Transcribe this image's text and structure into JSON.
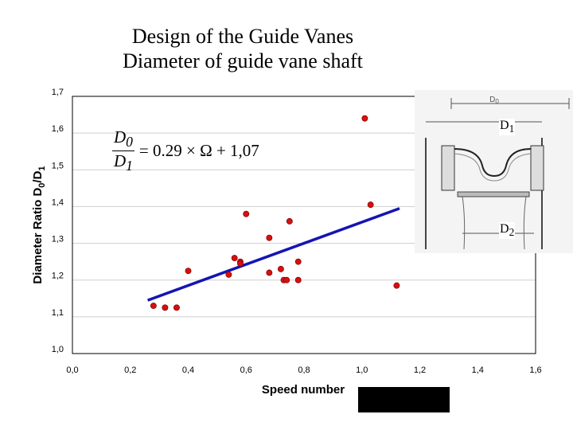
{
  "title": {
    "line1": "Design of the Guide Vanes",
    "line2": "Diameter of guide vane shaft"
  },
  "formula": {
    "numerator": "D",
    "numerator_sub": "0",
    "denominator": "D",
    "denominator_sub": "1",
    "rhs": "= 0.29 × Ω + 1,07"
  },
  "inset": {
    "top_label": "D",
    "top_sub": "0",
    "label_d1": "D",
    "label_d1_sub": "1",
    "label_d2": "D",
    "label_d2_sub": "2"
  },
  "chart_data": {
    "type": "scatter",
    "xlabel": "Speed number",
    "ylabel": "Diameter Ratio D0/D1",
    "xlim": [
      0.0,
      1.6
    ],
    "ylim": [
      1.0,
      1.7
    ],
    "x_ticks": [
      "0,0",
      "0,2",
      "0,4",
      "0,6",
      "0,8",
      "1,0",
      "1,2",
      "1,4",
      "1,6"
    ],
    "y_ticks": [
      "1,0",
      "1,1",
      "1,2",
      "1,3",
      "1,4",
      "1,5",
      "1,6",
      "1,7"
    ],
    "grid": true,
    "points": [
      {
        "x": 0.28,
        "y": 1.13
      },
      {
        "x": 0.32,
        "y": 1.125
      },
      {
        "x": 0.36,
        "y": 1.125
      },
      {
        "x": 0.4,
        "y": 1.225
      },
      {
        "x": 0.54,
        "y": 1.215
      },
      {
        "x": 0.56,
        "y": 1.26
      },
      {
        "x": 0.58,
        "y": 1.25
      },
      {
        "x": 0.58,
        "y": 1.245
      },
      {
        "x": 0.6,
        "y": 1.38
      },
      {
        "x": 0.68,
        "y": 1.315
      },
      {
        "x": 0.68,
        "y": 1.22
      },
      {
        "x": 0.72,
        "y": 1.23
      },
      {
        "x": 0.73,
        "y": 1.2
      },
      {
        "x": 0.74,
        "y": 1.2
      },
      {
        "x": 0.75,
        "y": 1.36
      },
      {
        "x": 0.78,
        "y": 1.25
      },
      {
        "x": 0.78,
        "y": 1.2
      },
      {
        "x": 1.01,
        "y": 1.64
      },
      {
        "x": 1.03,
        "y": 1.405
      },
      {
        "x": 1.12,
        "y": 1.185
      }
    ],
    "trendline": {
      "x": [
        0.26,
        1.13
      ],
      "y": [
        1.145,
        1.395
      ]
    },
    "colors": {
      "point": "#d90f0f",
      "trendline": "#1414b4",
      "grid": "#cfcfcf"
    }
  }
}
